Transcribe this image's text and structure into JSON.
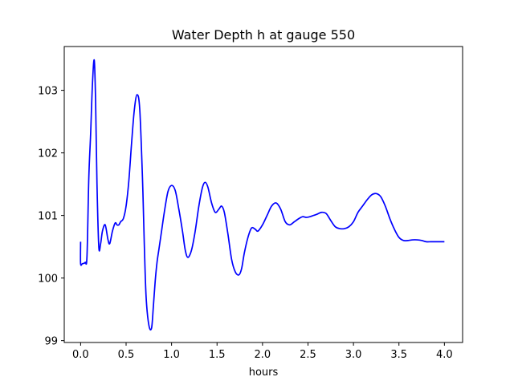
{
  "chart_data": {
    "type": "line",
    "title": "Water Depth h at gauge 550",
    "xlabel": "hours",
    "ylabel": "",
    "xlim": [
      -0.18,
      4.2
    ],
    "ylim": [
      98.97,
      103.7
    ],
    "xticks": [
      0.0,
      0.5,
      1.0,
      1.5,
      2.0,
      2.5,
      3.0,
      3.5,
      4.0
    ],
    "xtick_labels": [
      "0.0",
      "0.5",
      "1.0",
      "1.5",
      "2.0",
      "2.5",
      "3.0",
      "3.5",
      "4.0"
    ],
    "yticks": [
      99,
      100,
      101,
      102,
      103
    ],
    "ytick_labels": [
      "99",
      "100",
      "101",
      "102",
      "103"
    ],
    "grid": false,
    "series": [
      {
        "color": "#0000ff",
        "x": [
          0.0,
          0.0,
          0.02,
          0.05,
          0.07,
          0.09,
          0.11,
          0.13,
          0.15,
          0.165,
          0.18,
          0.2,
          0.22,
          0.24,
          0.27,
          0.3,
          0.32,
          0.35,
          0.38,
          0.4,
          0.42,
          0.44,
          0.47,
          0.5,
          0.53,
          0.56,
          0.59,
          0.62,
          0.65,
          0.68,
          0.7,
          0.72,
          0.75,
          0.78,
          0.8,
          0.82,
          0.84,
          0.86,
          0.89,
          0.92,
          0.96,
          1.0,
          1.04,
          1.08,
          1.12,
          1.15,
          1.18,
          1.22,
          1.26,
          1.3,
          1.34,
          1.37,
          1.4,
          1.44,
          1.48,
          1.52,
          1.55,
          1.58,
          1.62,
          1.66,
          1.7,
          1.74,
          1.77,
          1.8,
          1.84,
          1.88,
          1.92,
          1.95,
          2.0,
          2.05,
          2.1,
          2.15,
          2.2,
          2.25,
          2.3,
          2.35,
          2.4,
          2.44,
          2.48,
          2.52,
          2.56,
          2.6,
          2.65,
          2.7,
          2.75,
          2.8,
          2.85,
          2.9,
          2.95,
          3.0,
          3.05,
          3.1,
          3.15,
          3.2,
          3.25,
          3.3,
          3.35,
          3.4,
          3.45,
          3.5,
          3.55,
          3.6,
          3.65,
          3.7,
          3.75,
          3.8,
          3.85,
          3.9,
          3.95,
          4.0
        ],
        "y": [
          100.58,
          100.23,
          100.23,
          100.25,
          100.35,
          101.6,
          102.3,
          103.1,
          103.48,
          102.8,
          101.5,
          100.5,
          100.55,
          100.75,
          100.85,
          100.62,
          100.55,
          100.75,
          100.88,
          100.85,
          100.85,
          100.9,
          100.95,
          101.15,
          101.55,
          102.15,
          102.68,
          102.93,
          102.7,
          101.6,
          100.55,
          99.7,
          99.25,
          99.2,
          99.55,
          99.95,
          100.25,
          100.45,
          100.75,
          101.05,
          101.38,
          101.48,
          101.4,
          101.1,
          100.75,
          100.45,
          100.33,
          100.45,
          100.75,
          101.15,
          101.45,
          101.53,
          101.45,
          101.2,
          101.05,
          101.1,
          101.15,
          101.05,
          100.7,
          100.3,
          100.1,
          100.05,
          100.15,
          100.4,
          100.65,
          100.8,
          100.78,
          100.75,
          100.85,
          101.0,
          101.15,
          101.2,
          101.1,
          100.9,
          100.85,
          100.9,
          100.95,
          100.98,
          100.97,
          100.98,
          101.0,
          101.02,
          101.05,
          101.03,
          100.92,
          100.82,
          100.79,
          100.79,
          100.82,
          100.9,
          101.05,
          101.15,
          101.25,
          101.33,
          101.35,
          101.3,
          101.15,
          100.95,
          100.78,
          100.65,
          100.6,
          100.6,
          100.61,
          100.61,
          100.6,
          100.58,
          100.58,
          100.58,
          100.58,
          100.58
        ]
      }
    ]
  }
}
